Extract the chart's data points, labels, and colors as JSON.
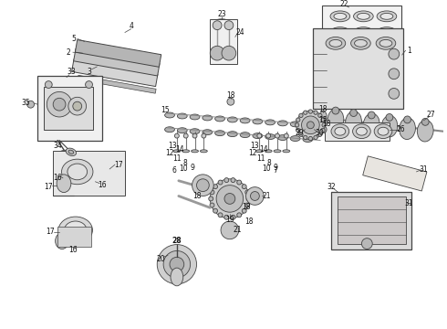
{
  "bg_color": "#ffffff",
  "lc": "#444444",
  "fc_light": "#e0e0e0",
  "fc_mid": "#c8c8c8",
  "fc_dark": "#a8a8a8",
  "figsize": [
    4.9,
    3.6
  ],
  "dpi": 100,
  "xlim": [
    0,
    490
  ],
  "ylim": [
    0,
    360
  ]
}
